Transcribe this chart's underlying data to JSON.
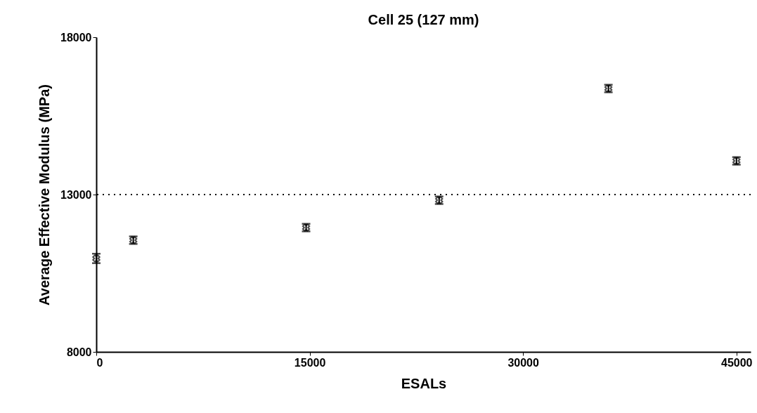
{
  "chart_data": {
    "type": "scatter",
    "title": "Cell 25 (127 mm)",
    "xlabel": "ESALs",
    "ylabel": "Average Effective Modulus (MPa)",
    "x": [
      0,
      2600,
      14750,
      24100,
      36000,
      45000
    ],
    "series": [
      {
        "color": "#000000",
        "values": [
          10970,
          11550,
          11950,
          12820,
          16370,
          14070
        ],
        "errors": [
          150,
          120,
          120,
          120,
          120,
          120
        ]
      }
    ],
    "xlim": [
      0,
      46000
    ],
    "xticks": [
      0,
      15000,
      30000,
      45000
    ],
    "ylim": [
      8000,
      18000
    ],
    "yticks": [
      8000,
      13000,
      18000
    ],
    "marker": "cross",
    "grid": false,
    "ref_lines": [
      {
        "axis": "y",
        "value": 13000,
        "color": "#000000",
        "line_style": "dotted"
      }
    ]
  }
}
